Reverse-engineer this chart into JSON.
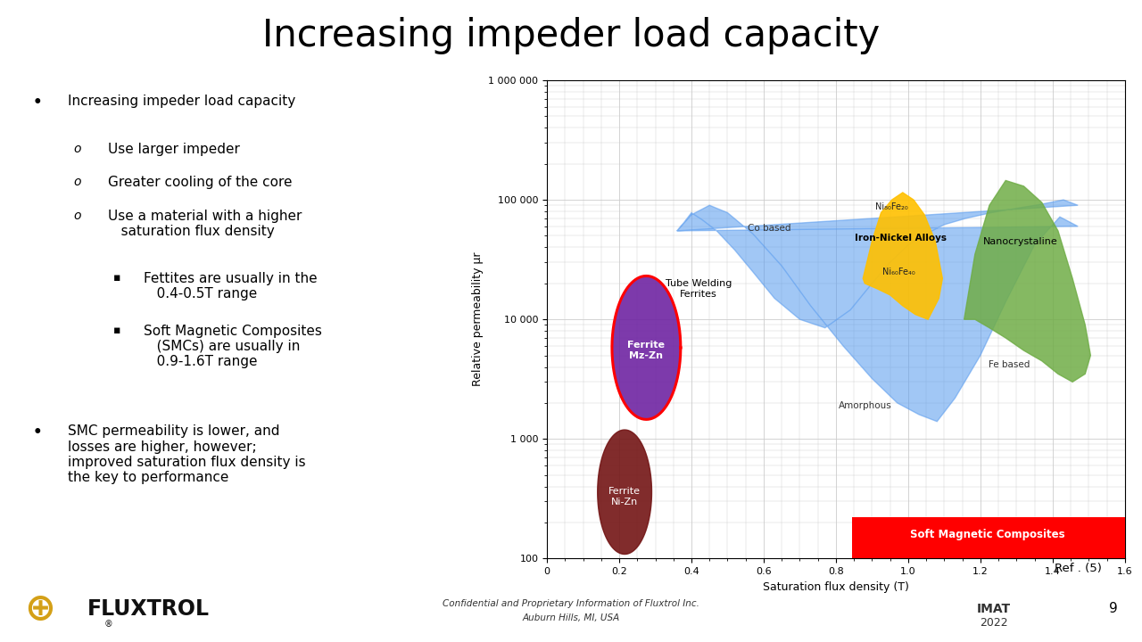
{
  "title": "Increasing impeder load capacity",
  "title_fontsize": 30,
  "background_color": "#ffffff",
  "chart": {
    "xlim": [
      0,
      1.6
    ],
    "ylim_log": [
      100,
      1000000
    ],
    "xlabel": "Saturation flux density (T)",
    "ylabel": "Relative permeability μr",
    "xticks": [
      0,
      0.2,
      0.4,
      0.6,
      0.8,
      1.0,
      1.2,
      1.4,
      1.6
    ],
    "yticks": [
      100,
      1000,
      10000,
      100000,
      1000000
    ],
    "ytick_labels": [
      "100",
      "1 000",
      "10 000",
      "100 000",
      "1 000 000"
    ],
    "grid_color": "#cccccc"
  },
  "ref_text": "Ref . (5)",
  "footer_text1": "Confidential and Proprietary Information of Fluxtrol Inc.",
  "footer_text2": "Auburn Hills, MI, USA",
  "slide_number": "9"
}
